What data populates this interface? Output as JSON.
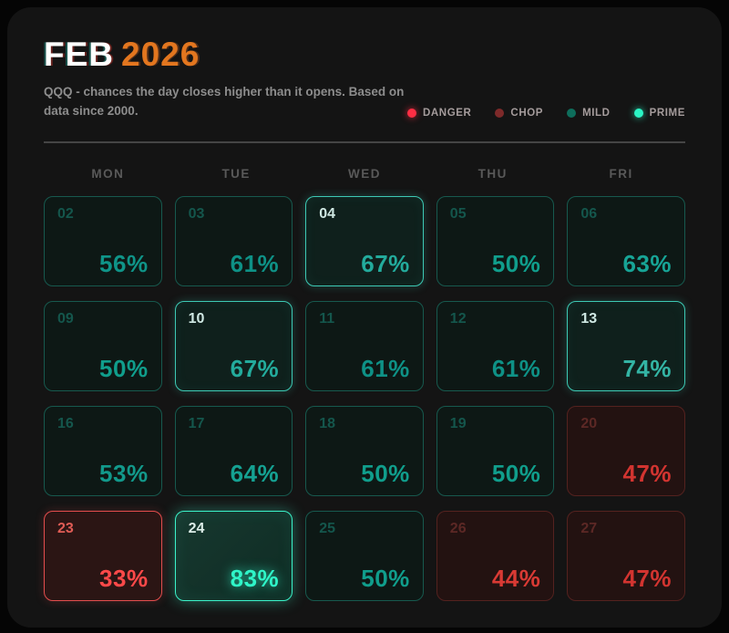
{
  "header": {
    "title_month": "FEB",
    "title_year": "2026",
    "subtitle": "QQQ - chances the day closes higher than it opens. Based on data since 2000."
  },
  "legend": [
    {
      "label": "DANGER",
      "color": "#ff2e44",
      "glow": "glow-red"
    },
    {
      "label": "CHOP",
      "color": "#7e2a2a",
      "glow": ""
    },
    {
      "label": "MILD",
      "color": "#0e6e5c",
      "glow": ""
    },
    {
      "label": "PRIME",
      "color": "#2bf5c5",
      "glow": "glow-mint"
    }
  ],
  "weekdays": [
    "MON",
    "TUE",
    "WED",
    "THU",
    "FRI"
  ],
  "colors": {
    "panel_bg": "#141414",
    "title_year_orange": "#e2761f",
    "mild_teal": "#0f9488",
    "prime_mint": "#2ff5c8",
    "danger_red": "#ff4949",
    "chop_red": "#d23430"
  },
  "chart_data": {
    "type": "heatmap",
    "title": "FEB 2026",
    "subtitle": "QQQ - chances the day closes higher than it opens. Based on data since 2000.",
    "unit": "%",
    "value_meaning": "probability day closes higher than it opens",
    "legend": [
      "DANGER",
      "CHOP",
      "MILD",
      "PRIME"
    ],
    "columns": [
      "MON",
      "TUE",
      "WED",
      "THU",
      "FRI"
    ],
    "cells": [
      {
        "day": "02",
        "weekday": "MON",
        "value": 56,
        "category": "mild",
        "highlight": false,
        "value_color": "#0f9488"
      },
      {
        "day": "03",
        "weekday": "TUE",
        "value": 61,
        "category": "mild",
        "highlight": false,
        "value_color": "#0e9186"
      },
      {
        "day": "04",
        "weekday": "WED",
        "value": 67,
        "category": "mild",
        "highlight": true,
        "value_color": "#23ab9c"
      },
      {
        "day": "05",
        "weekday": "THU",
        "value": 50,
        "category": "mild",
        "highlight": false,
        "value_color": "#109e8c"
      },
      {
        "day": "06",
        "weekday": "FRI",
        "value": 63,
        "category": "mild",
        "highlight": false,
        "value_color": "#17a496"
      },
      {
        "day": "09",
        "weekday": "MON",
        "value": 50,
        "category": "mild",
        "highlight": false,
        "value_color": "#109e8c"
      },
      {
        "day": "10",
        "weekday": "TUE",
        "value": 67,
        "category": "mild",
        "highlight": true,
        "value_color": "#23ab9c"
      },
      {
        "day": "11",
        "weekday": "WED",
        "value": 61,
        "category": "mild",
        "highlight": false,
        "value_color": "#0e9186"
      },
      {
        "day": "12",
        "weekday": "THU",
        "value": 61,
        "category": "mild",
        "highlight": false,
        "value_color": "#0e9186"
      },
      {
        "day": "13",
        "weekday": "FRI",
        "value": 74,
        "category": "mild",
        "highlight": true,
        "value_color": "#33b4a4"
      },
      {
        "day": "16",
        "weekday": "MON",
        "value": 53,
        "category": "mild",
        "highlight": false,
        "value_color": "#12998b"
      },
      {
        "day": "17",
        "weekday": "TUE",
        "value": 64,
        "category": "mild",
        "highlight": false,
        "value_color": "#15a192"
      },
      {
        "day": "18",
        "weekday": "WED",
        "value": 50,
        "category": "mild",
        "highlight": false,
        "value_color": "#109e8c"
      },
      {
        "day": "19",
        "weekday": "THU",
        "value": 50,
        "category": "mild",
        "highlight": false,
        "value_color": "#109e8c"
      },
      {
        "day": "20",
        "weekday": "FRI",
        "value": 47,
        "category": "chop",
        "highlight": false,
        "value_color": "#d23430"
      },
      {
        "day": "23",
        "weekday": "MON",
        "value": 33,
        "category": "danger",
        "highlight": false,
        "value_color": "#ff4949"
      },
      {
        "day": "24",
        "weekday": "TUE",
        "value": 83,
        "category": "prime",
        "highlight": true,
        "value_color": "#2ff5c8"
      },
      {
        "day": "25",
        "weekday": "WED",
        "value": 50,
        "category": "mild",
        "highlight": false,
        "value_color": "#109e8c"
      },
      {
        "day": "26",
        "weekday": "THU",
        "value": 44,
        "category": "chop",
        "highlight": false,
        "value_color": "#d93a34"
      },
      {
        "day": "27",
        "weekday": "FRI",
        "value": 47,
        "category": "chop",
        "highlight": false,
        "value_color": "#d23430"
      }
    ]
  }
}
